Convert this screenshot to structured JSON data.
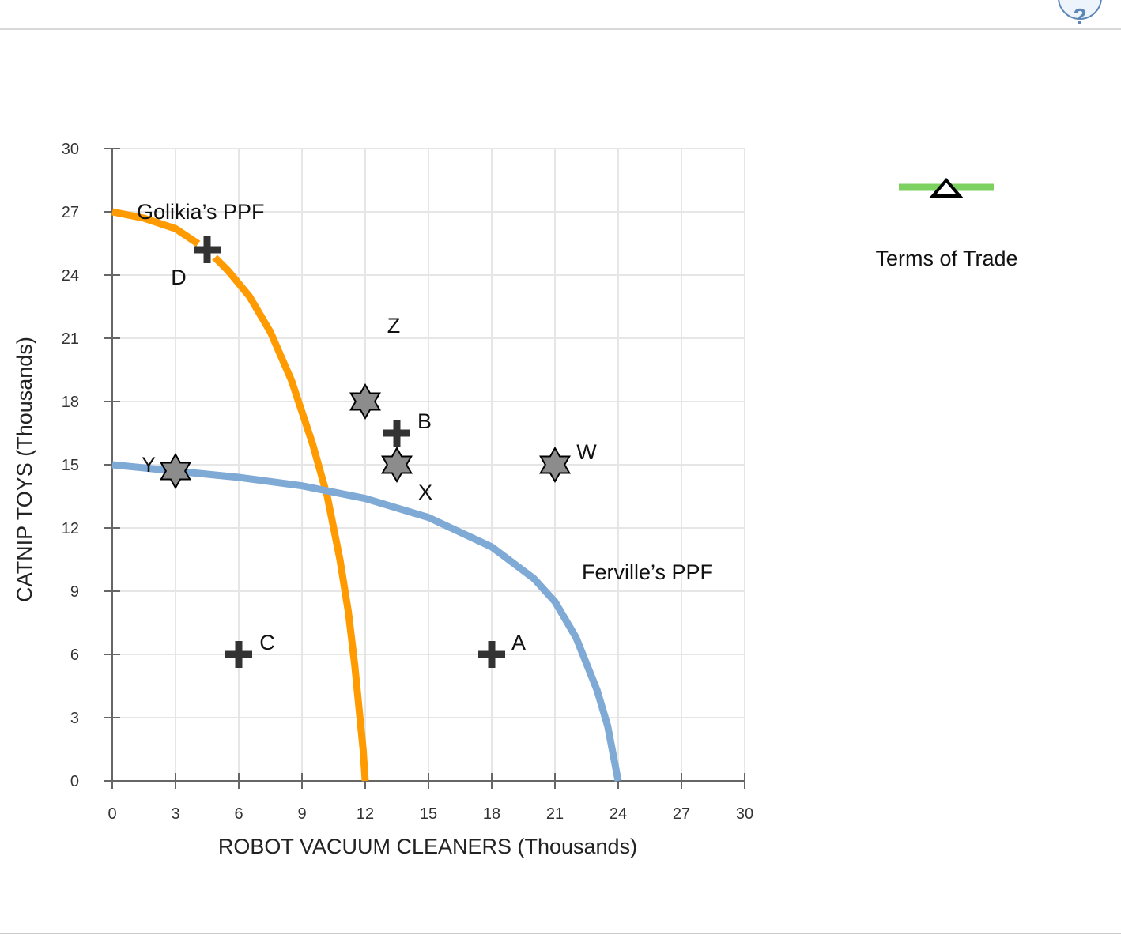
{
  "toolbar": {
    "help_label": "?"
  },
  "legend": {
    "label": "Terms of Trade",
    "line_color": "#7dd161",
    "marker_icon": "triangle-outline-icon"
  },
  "chart_data": {
    "type": "line",
    "xlabel": "ROBOT VACUUM CLEANERS (Thousands)",
    "ylabel": "CATNIP TOYS (Thousands)",
    "xlim": [
      0,
      30
    ],
    "ylim": [
      0,
      30
    ],
    "xticks": [
      0,
      3,
      6,
      9,
      12,
      15,
      18,
      21,
      24,
      27,
      30
    ],
    "yticks": [
      0,
      3,
      6,
      9,
      12,
      15,
      18,
      21,
      24,
      27,
      30
    ],
    "grid": true,
    "series": [
      {
        "name": "Golikia’s PPF",
        "color": "#ff9a00",
        "x": [
          0,
          1.5,
          3,
          4.5,
          5.5,
          6.5,
          7.5,
          8.5,
          9.5,
          10.2,
          10.8,
          11.2,
          11.5,
          11.75,
          11.9,
          12
        ],
        "y": [
          27,
          26.7,
          26.2,
          25.2,
          24.2,
          23,
          21.3,
          19,
          16,
          13.5,
          10.5,
          8,
          5.5,
          3,
          1.5,
          0
        ]
      },
      {
        "name": "Ferville’s PPF",
        "color": "#7faad6",
        "x": [
          0,
          3,
          6,
          9,
          12,
          15,
          18,
          20,
          21,
          22,
          23,
          23.5,
          24
        ],
        "y": [
          15,
          14.7,
          14.4,
          14,
          13.4,
          12.5,
          11.1,
          9.6,
          8.5,
          6.8,
          4.3,
          2.6,
          0
        ]
      }
    ],
    "points": [
      {
        "label": "A",
        "x": 18,
        "y": 6,
        "marker": "plus"
      },
      {
        "label": "B",
        "x": 13.5,
        "y": 16.5,
        "marker": "plus"
      },
      {
        "label": "C",
        "x": 6,
        "y": 6,
        "marker": "plus"
      },
      {
        "label": "D",
        "x": 4.5,
        "y": 25.2,
        "marker": "plus"
      },
      {
        "label": "W",
        "x": 21,
        "y": 15,
        "marker": "star"
      },
      {
        "label": "X",
        "x": 13.5,
        "y": 15,
        "marker": "star"
      },
      {
        "label": "Y",
        "x": 3,
        "y": 14.7,
        "marker": "star"
      },
      {
        "label": "Z",
        "x": 12,
        "y": 18,
        "marker": "star"
      }
    ],
    "marker_colors": {
      "plus": "#333333",
      "star_fill": "#8c8c8c",
      "star_stroke": "#000000"
    }
  }
}
